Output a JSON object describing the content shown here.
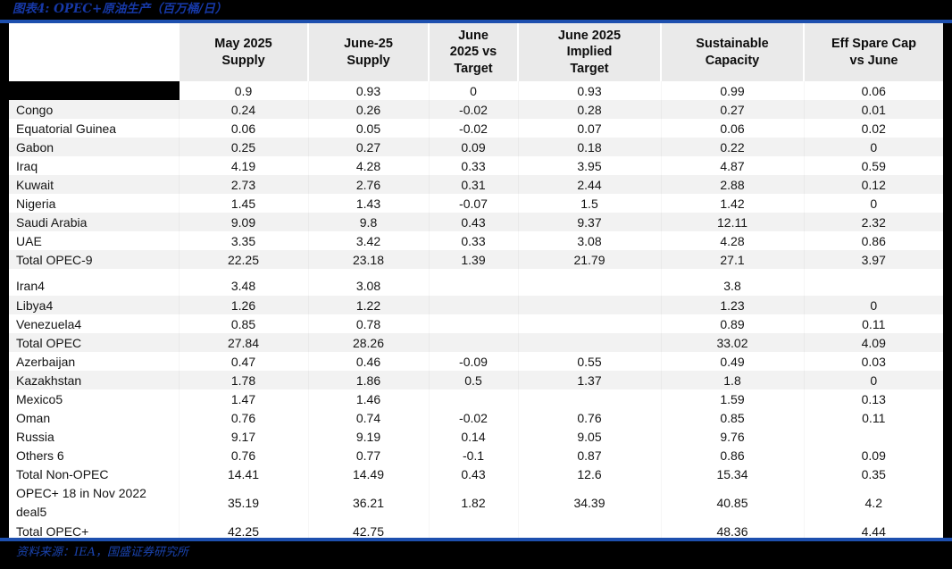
{
  "colors": {
    "accent_blue_rule": "#1d4fae",
    "title_blue": "#1638a6",
    "header_bg": "#eaeaea",
    "row_stripe_bg": "#f2f2f2",
    "redaction_black": "#000000",
    "page_margin_black": "#000000"
  },
  "chart_data": {
    "type": "table",
    "title": "图表4: OPEC+原油生产（百万桶/日）",
    "source": "资料来源：IEA，国盛证券研究所",
    "column_headers": [
      "",
      "May 2025\nSupply",
      "June-25\nSupply",
      "June\n2025 vs\nTarget",
      "June 2025\nImplied\nTarget",
      "Sustainable\nCapacity",
      "Eff Spare Cap\nvs June"
    ],
    "rows": [
      {
        "label": "",
        "redacted": true,
        "values": [
          "0.9",
          "0.93",
          "0",
          "0.93",
          "0.99",
          "0.06"
        ]
      },
      {
        "label": "Congo",
        "shaded": true,
        "values": [
          "0.24",
          "0.26",
          "-0.02",
          "0.28",
          "0.27",
          "0.01"
        ]
      },
      {
        "label": "Equatorial Guinea",
        "values": [
          "0.06",
          "0.05",
          "-0.02",
          "0.07",
          "0.06",
          "0.02"
        ]
      },
      {
        "label": "Gabon",
        "shaded": true,
        "values": [
          "0.25",
          "0.27",
          "0.09",
          "0.18",
          "0.22",
          "0"
        ]
      },
      {
        "label": "Iraq",
        "values": [
          "4.19",
          "4.28",
          "0.33",
          "3.95",
          "4.87",
          "0.59"
        ]
      },
      {
        "label": "Kuwait",
        "shaded": true,
        "values": [
          "2.73",
          "2.76",
          "0.31",
          "2.44",
          "2.88",
          "0.12"
        ]
      },
      {
        "label": "Nigeria",
        "values": [
          "1.45",
          "1.43",
          "-0.07",
          "1.5",
          "1.42",
          "0"
        ]
      },
      {
        "label": "Saudi Arabia",
        "shaded": true,
        "values": [
          "9.09",
          "9.8",
          "0.43",
          "9.37",
          "12.11",
          "2.32"
        ]
      },
      {
        "label": "UAE",
        "values": [
          "3.35",
          "3.42",
          "0.33",
          "3.08",
          "4.28",
          "0.86"
        ]
      },
      {
        "label": "Total OPEC-9",
        "shaded": true,
        "values": [
          "22.25",
          "23.18",
          "1.39",
          "21.79",
          "27.1",
          "3.97"
        ]
      },
      {
        "label": "Iran4",
        "tall": true,
        "values": [
          "3.48",
          "3.08",
          "",
          "",
          "3.8",
          ""
        ]
      },
      {
        "label": "Libya4",
        "shaded": true,
        "values": [
          "1.26",
          "1.22",
          "",
          "",
          "1.23",
          "0"
        ]
      },
      {
        "label": "Venezuela4",
        "values": [
          "0.85",
          "0.78",
          "",
          "",
          "0.89",
          "0.11"
        ]
      },
      {
        "label": "Total OPEC",
        "shaded": true,
        "values": [
          "27.84",
          "28.26",
          "",
          "",
          "33.02",
          "4.09"
        ]
      },
      {
        "label": "Azerbaijan",
        "values": [
          "0.47",
          "0.46",
          "-0.09",
          "0.55",
          "0.49",
          "0.03"
        ]
      },
      {
        "label": "Kazakhstan",
        "shaded": true,
        "values": [
          "1.78",
          "1.86",
          "0.5",
          "1.37",
          "1.8",
          "0"
        ]
      },
      {
        "label": "Mexico5",
        "values": [
          "1.47",
          "1.46",
          "",
          "",
          "1.59",
          "0.13"
        ]
      },
      {
        "label": "Oman",
        "values": [
          "0.76",
          "0.74",
          "-0.02",
          "0.76",
          "0.85",
          "0.11"
        ]
      },
      {
        "label": "Russia",
        "values": [
          "9.17",
          "9.19",
          "0.14",
          "9.05",
          "9.76",
          ""
        ]
      },
      {
        "label": "Others 6",
        "values": [
          "0.76",
          "0.77",
          "-0.1",
          "0.87",
          "0.86",
          "0.09"
        ]
      },
      {
        "label": "Total Non-OPEC",
        "values": [
          "14.41",
          "14.49",
          "0.43",
          "12.6",
          "15.34",
          "0.35"
        ]
      },
      {
        "label": "OPEC+ 18 in Nov 2022 deal5",
        "two_line": true,
        "values": [
          "35.19",
          "36.21",
          "1.82",
          "34.39",
          "40.85",
          "4.2"
        ]
      },
      {
        "label": "Total OPEC+",
        "values": [
          "42.25",
          "42.75",
          "",
          "",
          "48.36",
          "4.44"
        ]
      }
    ]
  }
}
